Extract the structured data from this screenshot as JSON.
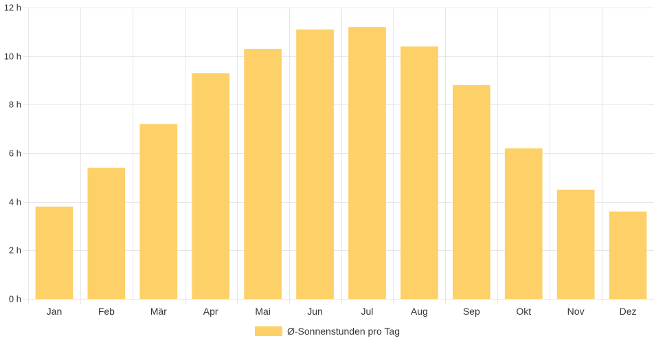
{
  "chart_data": {
    "type": "bar",
    "categories": [
      "Jan",
      "Feb",
      "Mär",
      "Apr",
      "Mai",
      "Jun",
      "Jul",
      "Aug",
      "Sep",
      "Okt",
      "Nov",
      "Dez"
    ],
    "series": [
      {
        "name": "Ø-Sonnenstunden pro Tag",
        "values": [
          3.8,
          5.4,
          7.2,
          9.3,
          10.3,
          11.1,
          11.2,
          10.4,
          8.8,
          6.2,
          4.5,
          3.6
        ],
        "color": "#fdd068"
      }
    ],
    "title": "",
    "xlabel": "",
    "ylabel": "",
    "ylim": [
      0,
      12
    ],
    "yticks": [
      0,
      2,
      4,
      6,
      8,
      10,
      12
    ],
    "y_tick_labels": [
      "0 h",
      "2 h",
      "4 h",
      "6 h",
      "8 h",
      "10 h",
      "12 h"
    ],
    "grid": true,
    "legend": "bottom-center",
    "grid_color": "#e6e6e6"
  }
}
